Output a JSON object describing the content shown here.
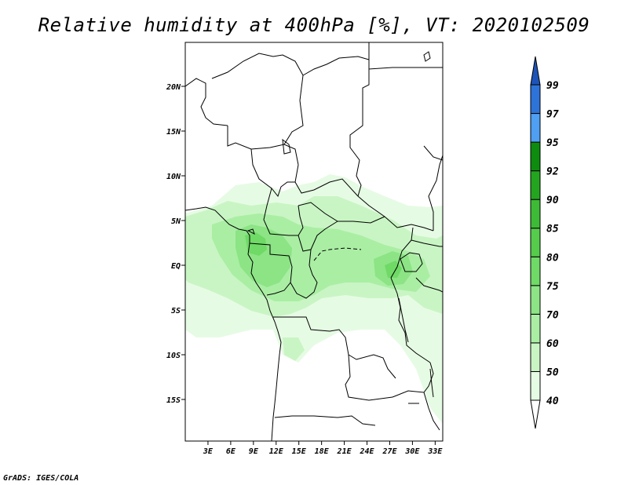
{
  "title": "Relative humidity at 400hPa [%], VT: 2020102509",
  "credit": "GrADS: IGES/COLA",
  "map": {
    "lon_range": [
      0,
      34
    ],
    "lat_range": [
      -20,
      25
    ],
    "lat_ticks": [
      {
        "value": 20,
        "label": "20N"
      },
      {
        "value": 15,
        "label": "15N"
      },
      {
        "value": 10,
        "label": "10N"
      },
      {
        "value": 5,
        "label": "5N"
      },
      {
        "value": 0,
        "label": "EQ"
      },
      {
        "value": -5,
        "label": "5S"
      },
      {
        "value": -10,
        "label": "10S"
      },
      {
        "value": -15,
        "label": "15S"
      }
    ],
    "lon_ticks": [
      {
        "value": 3,
        "label": "3E"
      },
      {
        "value": 6,
        "label": "6E"
      },
      {
        "value": 9,
        "label": "9E"
      },
      {
        "value": 12,
        "label": "12E"
      },
      {
        "value": 15,
        "label": "15E"
      },
      {
        "value": 18,
        "label": "18E"
      },
      {
        "value": 21,
        "label": "21E"
      },
      {
        "value": 24,
        "label": "24E"
      },
      {
        "value": 27,
        "label": "27E"
      },
      {
        "value": 30,
        "label": "30E"
      },
      {
        "value": 33,
        "label": "33E"
      }
    ]
  },
  "colorbar": {
    "levels": [
      "40",
      "50",
      "60",
      "70",
      "75",
      "80",
      "85",
      "90",
      "92",
      "95",
      "97",
      "99"
    ],
    "colors": [
      "#ffffff",
      "#e6fbe4",
      "#c9f5c4",
      "#aaeea4",
      "#8ce485",
      "#6fda66",
      "#55cc4c",
      "#3dbb36",
      "#24a51f",
      "#0d8c0f",
      "#4f9ff2",
      "#2e73d8",
      "#1e54b8"
    ]
  }
}
